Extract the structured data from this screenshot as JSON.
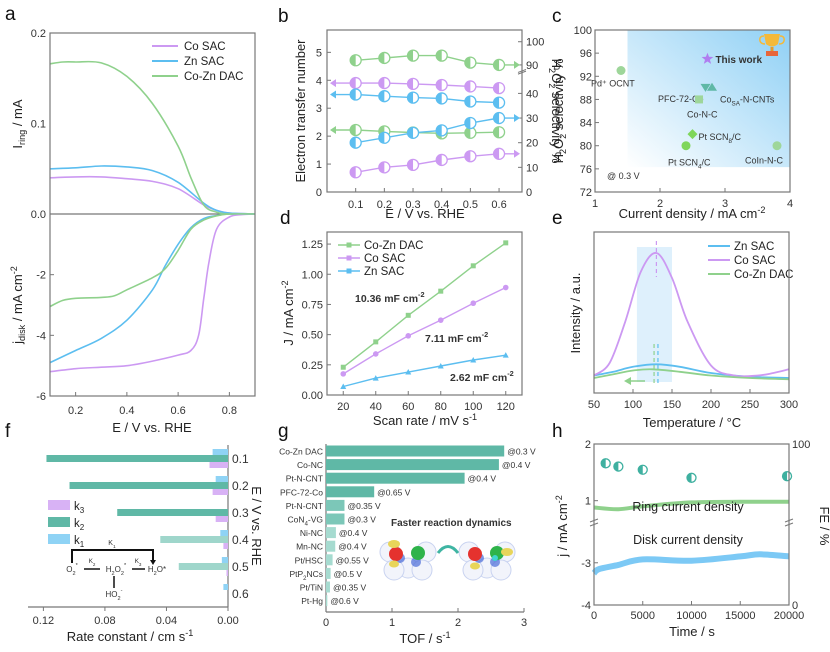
{
  "colors": {
    "co_sac": "#cc99f2",
    "zn_sac": "#5cbef0",
    "cozn_dac": "#8fd18c",
    "teal": "#5fb8a6",
    "teal_light": "#9fd6cb",
    "shade": "#d6ecfb"
  },
  "chart_data": [
    {
      "id": "a",
      "panel_label": "a",
      "type": "line",
      "ylabel_top": "I_ring / mA",
      "ylabel_bottom": "j_disk / mA cm^-2",
      "xlabel": "E / V vs. RHE",
      "xlim": [
        0.1,
        0.9
      ],
      "ylim_top": [
        0,
        0.2
      ],
      "ylim_bottom": [
        -6,
        0
      ],
      "xticks": [
        "0.2",
        "0.4",
        "0.6",
        "0.8"
      ],
      "yticks_top": [
        "0.0",
        "0.1",
        "0.2"
      ],
      "yticks_bottom": [
        "-6",
        "-4",
        "-2",
        "0.0"
      ],
      "legend": [
        "Co SAC",
        "Zn SAC",
        "Co-Zn DAC"
      ],
      "legend_position": "top-right",
      "series_ring": [
        {
          "name": "Co SAC",
          "x": [
            0.1,
            0.2,
            0.3,
            0.4,
            0.5,
            0.6,
            0.7,
            0.75,
            0.8,
            0.9
          ],
          "y": [
            0.04,
            0.041,
            0.041,
            0.039,
            0.036,
            0.028,
            0.01,
            0.004,
            0.001,
            0.0
          ]
        },
        {
          "name": "Zn SAC",
          "x": [
            0.1,
            0.2,
            0.3,
            0.4,
            0.5,
            0.6,
            0.7,
            0.75,
            0.8,
            0.9
          ],
          "y": [
            0.05,
            0.051,
            0.053,
            0.052,
            0.048,
            0.035,
            0.012,
            0.004,
            0.001,
            0.0
          ]
        },
        {
          "name": "Co-Zn DAC",
          "x": [
            0.1,
            0.15,
            0.2,
            0.3,
            0.4,
            0.5,
            0.6,
            0.65,
            0.7,
            0.75,
            0.8,
            0.9
          ],
          "y": [
            0.166,
            0.168,
            0.168,
            0.167,
            0.152,
            0.122,
            0.075,
            0.04,
            0.01,
            0.002,
            0.0,
            0.0
          ]
        }
      ],
      "series_disk": [
        {
          "name": "Co SAC",
          "x": [
            0.1,
            0.2,
            0.3,
            0.4,
            0.5,
            0.6,
            0.65,
            0.68,
            0.7,
            0.72,
            0.75,
            0.8,
            0.85,
            0.9
          ],
          "y": [
            -5.2,
            -5.1,
            -5.05,
            -5.0,
            -4.85,
            -4.65,
            -4.5,
            -4.0,
            -2.8,
            -1.6,
            -0.5,
            -0.1,
            -0.02,
            0.0
          ]
        },
        {
          "name": "Zn SAC",
          "x": [
            0.1,
            0.2,
            0.3,
            0.4,
            0.5,
            0.55,
            0.6,
            0.65,
            0.7,
            0.75,
            0.8,
            0.9
          ],
          "y": [
            -4.9,
            -4.5,
            -4.1,
            -3.5,
            -2.5,
            -1.7,
            -1.0,
            -0.45,
            -0.15,
            -0.05,
            0.0,
            0.0
          ]
        },
        {
          "name": "Co-Zn DAC",
          "x": [
            0.1,
            0.15,
            0.2,
            0.3,
            0.35,
            0.4,
            0.5,
            0.55,
            0.6,
            0.65,
            0.7,
            0.75,
            0.8,
            0.9
          ],
          "y": [
            -3.05,
            -2.85,
            -2.78,
            -2.75,
            -2.7,
            -2.5,
            -2.1,
            -1.8,
            -1.2,
            -0.5,
            -0.2,
            -0.06,
            0.0,
            0.0
          ]
        }
      ]
    },
    {
      "id": "b",
      "panel_label": "b",
      "type": "line",
      "ylabel_left": "Electron transfer number",
      "ylabel_right": "H2O2 selectivity %",
      "xlabel": "E / V vs. RHE",
      "x": [
        0.1,
        0.2,
        0.3,
        0.4,
        0.5,
        0.6
      ],
      "xticks": [
        "0.1",
        "0.2",
        "0.3",
        "0.4",
        "0.5",
        "0.6"
      ],
      "ylim_left": [
        0,
        5.8
      ],
      "yticks_left": [
        "0",
        "1",
        "2",
        "3",
        "4",
        "5"
      ],
      "yticks_right": [
        "0",
        "10",
        "20",
        "30",
        "40",
        "90",
        "100"
      ],
      "series": [
        {
          "name": "Co-Zn DAC H2O2 %",
          "axis": "right",
          "values": [
            92,
            93,
            94,
            94,
            91,
            90
          ]
        },
        {
          "name": "Co SAC n",
          "axis": "left",
          "values": [
            3.9,
            3.9,
            3.87,
            3.83,
            3.78,
            3.72
          ]
        },
        {
          "name": "Zn SAC n",
          "axis": "left",
          "values": [
            3.49,
            3.43,
            3.38,
            3.35,
            3.24,
            3.2
          ]
        },
        {
          "name": "Co-Zn DAC n",
          "axis": "left",
          "values": [
            2.22,
            2.17,
            2.13,
            2.1,
            2.12,
            2.14
          ]
        },
        {
          "name": "Zn SAC H2O2 %",
          "axis": "right",
          "values": [
            20,
            22,
            24,
            25,
            28,
            30
          ]
        },
        {
          "name": "Co SAC H2O2 %",
          "axis": "right",
          "values": [
            8,
            10,
            11,
            13,
            14.5,
            15.5
          ]
        }
      ]
    },
    {
      "id": "c",
      "panel_label": "c",
      "type": "scatter",
      "ylabel": "H2O2 selectivity %",
      "xlabel": "Current density / mA cm^-2",
      "xlim": [
        1,
        4
      ],
      "ylim": [
        72,
        100
      ],
      "xticks": [
        "1",
        "2",
        "3",
        "4"
      ],
      "yticks": [
        "72",
        "76",
        "80",
        "84",
        "88",
        "92",
        "96",
        "100"
      ],
      "annotation": "@ 0.3 V",
      "points": [
        {
          "label": "Pd⁺ OCNT",
          "x": 1.4,
          "y": 93,
          "marker": "circle"
        },
        {
          "label": "PFC-72-Co",
          "x": 2.7,
          "y": 90,
          "marker": "triangle-down"
        },
        {
          "label": "CoSA-N-CNTs",
          "x": 2.8,
          "y": 90.2,
          "marker": "triangle-up"
        },
        {
          "label": "Co-N-C",
          "x": 2.6,
          "y": 88,
          "marker": "square"
        },
        {
          "label": "Pt SCN8/C",
          "x": 2.5,
          "y": 82,
          "marker": "diamond"
        },
        {
          "label": "Pt SCN4/C",
          "x": 2.4,
          "y": 80,
          "marker": "hexagon"
        },
        {
          "label": "CoIn-N-C",
          "x": 3.8,
          "y": 80,
          "marker": "circle"
        },
        {
          "label": "This work",
          "x": 2.73,
          "y": 95,
          "marker": "star"
        }
      ]
    },
    {
      "id": "d",
      "panel_label": "d",
      "type": "line",
      "ylabel": "J / mA cm^-2",
      "xlabel": "Scan rate / mV s^-1",
      "x": [
        20,
        40,
        60,
        80,
        100,
        120
      ],
      "xlim": [
        10,
        130
      ],
      "ylim": [
        0,
        1.35
      ],
      "xticks": [
        "20",
        "40",
        "60",
        "80",
        "100",
        "120"
      ],
      "yticks": [
        "0.00",
        "0.25",
        "0.50",
        "0.75",
        "1.00",
        "1.25"
      ],
      "legend_position": "top-left",
      "series": [
        {
          "name": "Co-Zn DAC",
          "values": [
            0.23,
            0.44,
            0.66,
            0.86,
            1.07,
            1.26
          ],
          "annotation": "10.36 mF cm^-2"
        },
        {
          "name": "Co SAC",
          "values": [
            0.175,
            0.34,
            0.49,
            0.62,
            0.76,
            0.89
          ],
          "annotation": "7.11 mF cm^-2"
        },
        {
          "name": "Zn SAC",
          "values": [
            0.07,
            0.14,
            0.19,
            0.24,
            0.29,
            0.33
          ],
          "annotation": "2.62 mF cm^-2"
        }
      ]
    },
    {
      "id": "e",
      "panel_label": "e",
      "type": "line",
      "ylabel": "Intensity / a.u.",
      "xlabel": "Temperature / °C",
      "xlim": [
        50,
        300
      ],
      "xticks": [
        "50",
        "100",
        "150",
        "200",
        "250",
        "300"
      ],
      "legend": [
        "Zn SAC",
        "Co SAC",
        "Co-Zn DAC"
      ],
      "legend_position": "top-right",
      "series": [
        {
          "name": "Zn SAC",
          "peak_x": 132,
          "x": [
            50,
            75,
            100,
            130,
            160,
            200,
            250,
            300
          ],
          "y": [
            0.02,
            0.05,
            0.09,
            0.11,
            0.09,
            0.04,
            0.01,
            0.0
          ]
        },
        {
          "name": "Co SAC",
          "peak_x": 130,
          "x": [
            50,
            70,
            90,
            110,
            130,
            150,
            170,
            200,
            230,
            260,
            280,
            300
          ],
          "y": [
            0.02,
            0.12,
            0.45,
            0.85,
            1.0,
            0.8,
            0.45,
            0.1,
            0.02,
            0.02,
            0.04,
            0.07
          ]
        },
        {
          "name": "Co-Zn DAC",
          "peak_x": 127,
          "x": [
            50,
            75,
            100,
            125,
            160,
            200,
            250,
            300
          ],
          "y": [
            0.0,
            0.03,
            0.06,
            0.07,
            0.05,
            0.02,
            0.0,
            -0.01
          ]
        }
      ]
    },
    {
      "id": "f",
      "panel_label": "f",
      "type": "bar",
      "xlabel": "Rate constant / cm s^-1",
      "ylabel": "E / V vs. RHE",
      "categories": [
        "0.1",
        "0.2",
        "0.3",
        "0.4",
        "0.5",
        "0.6"
      ],
      "xlim": [
        0.13,
        0
      ],
      "xticks": [
        "0.12",
        "0.08",
        "0.04",
        "0.00"
      ],
      "legend": [
        "k3",
        "k2",
        "k1"
      ],
      "series": [
        {
          "name": "k1",
          "values": [
            0.01,
            0.008,
            0.0,
            0.005,
            0.004,
            0.003
          ]
        },
        {
          "name": "k2",
          "values": [
            0.118,
            0.103,
            0.072,
            0.044,
            0.032,
            0.0
          ]
        },
        {
          "name": "k3",
          "values": [
            0.012,
            0.01,
            0.008,
            0.003,
            0.001,
            0.0
          ]
        }
      ],
      "scheme": {
        "top": "K1",
        "left": "O2*",
        "mid": "H2O2*",
        "right": "H2O*",
        "bottom": "HO2-",
        "k_left": "K2",
        "k_right": "K3"
      }
    },
    {
      "id": "g",
      "panel_label": "g",
      "type": "bar",
      "xlabel": "TOF / s^-1",
      "xlim": [
        0,
        3
      ],
      "xticks": [
        "0",
        "1",
        "2",
        "3"
      ],
      "categories": [
        "Co-Zn DAC",
        "Co-NC",
        "Pt-N-CNT",
        "PFC-72-Co",
        "Pt-N-CNT",
        "CoN4-VG",
        "Ni-NC",
        "Mn-NC",
        "Pt/HSC",
        "PtP2NCs",
        "Pt/TiN",
        "Pt-Hg"
      ],
      "values": [
        2.7,
        2.62,
        2.1,
        0.73,
        0.28,
        0.28,
        0.15,
        0.14,
        0.1,
        0.07,
        0.06,
        0.02
      ],
      "labels": [
        "@0.3 V",
        "@0.4 V",
        "@0.4 V",
        "@0.65 V",
        "@0.35 V",
        "@0.3 V",
        "@0.4 V",
        "@0.4 V",
        "@0.55 V",
        "@0.5 V",
        "@0.35 V",
        "@0.6 V"
      ],
      "annotation": "Faster reaction dynamics"
    },
    {
      "id": "h",
      "panel_label": "h",
      "type": "line",
      "xlabel": "Time / s",
      "ylabel_left": "j / mA cm^-2",
      "ylabel_right": "FE / %",
      "xlim": [
        0,
        20000
      ],
      "xticks": [
        "0",
        "5000",
        "10000",
        "15000",
        "20000"
      ],
      "yticks_left": [
        "-4",
        "-3",
        "1",
        "2"
      ],
      "yticks_right": [
        "0",
        "100"
      ],
      "series": [
        {
          "name": "Ring current density",
          "x": [
            0,
            2500,
            5000,
            10000,
            15000,
            20000
          ],
          "y": [
            0.88,
            0.85,
            0.9,
            0.97,
            0.98,
            0.98
          ]
        },
        {
          "name": "Disk current density",
          "x": [
            0,
            500,
            2500,
            5000,
            10000,
            15000,
            17000,
            20000
          ],
          "y": [
            -3.25,
            -3.15,
            -3.05,
            -2.92,
            -2.95,
            -2.85,
            -2.8,
            -2.85
          ]
        },
        {
          "name": "FE",
          "x": [
            1200,
            2500,
            5000,
            10000,
            19800
          ],
          "y": [
            88,
            86,
            84,
            79,
            80
          ]
        }
      ]
    }
  ]
}
